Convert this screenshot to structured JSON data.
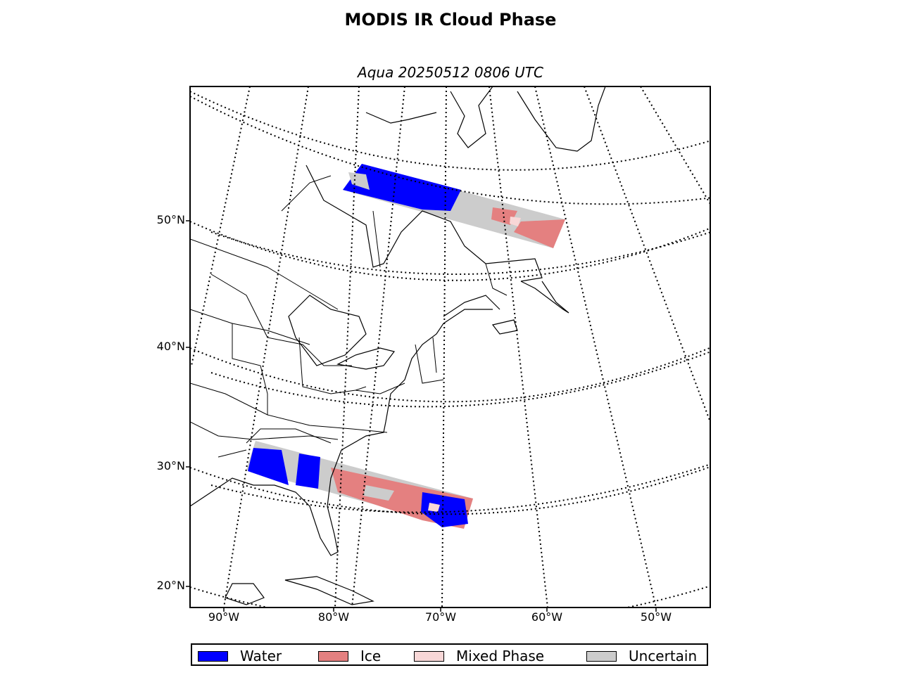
{
  "title": "MODIS IR Cloud Phase",
  "subtitle": "Aqua 20250512 0806 UTC",
  "latitude_labels": [
    "50°N",
    "40°N",
    "30°N",
    "20°N"
  ],
  "longitude_labels": [
    "90°W",
    "80°W",
    "70°W",
    "60°W",
    "50°W"
  ],
  "legend": [
    {
      "label": "Water",
      "color": "#0000ff"
    },
    {
      "label": "Ice",
      "color": "#e48080"
    },
    {
      "label": "Mixed Phase",
      "color": "#f8d7d7"
    },
    {
      "label": "Uncertain",
      "color": "#cccccc"
    }
  ],
  "colors": {
    "water": "#0000ff",
    "ice": "#e48080",
    "mixed_phase": "#f8d7d7",
    "uncertain": "#cccccc",
    "coastline": "#000000"
  }
}
